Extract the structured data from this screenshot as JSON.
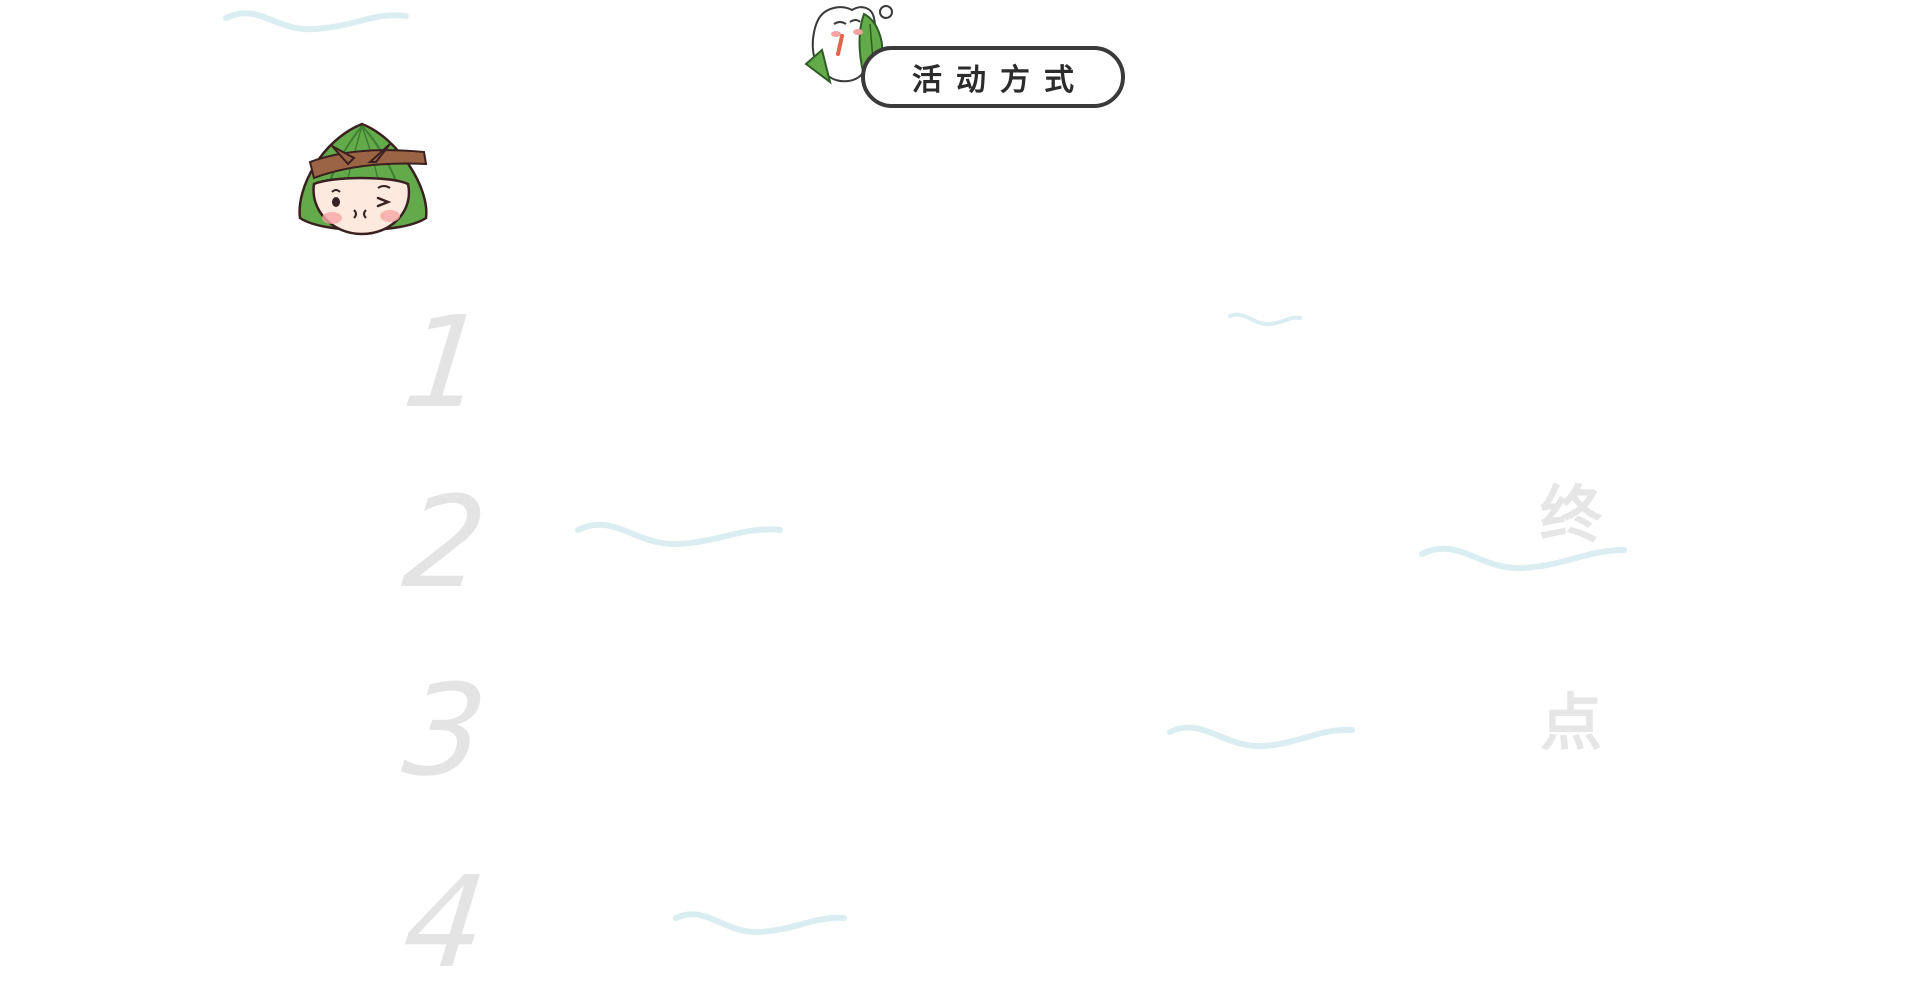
{
  "section_title": "活动方式",
  "steps": [
    {
      "number": "1"
    },
    {
      "number": "2"
    },
    {
      "number": "3"
    },
    {
      "number": "4"
    }
  ],
  "side_chars": [
    "终",
    "点"
  ],
  "colors": {
    "wave": "#daeef2",
    "number": "#e4e4e4",
    "title_border": "#3a3a3a",
    "zongzi_leaf": "#63ab4a",
    "zongzi_rope": "#9a6445"
  },
  "icons": {
    "mascot_top": "tooth-with-zongzi-leaf-icon",
    "mascot_left": "zongzi-character-icon",
    "decor": "wave-line-icon"
  }
}
